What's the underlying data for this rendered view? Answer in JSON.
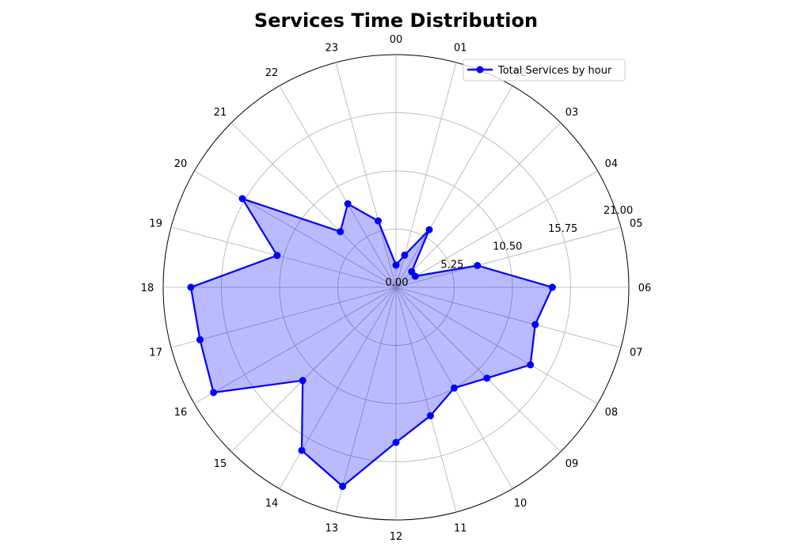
{
  "chart_data": {
    "type": "radar",
    "title": "Services Time Distribution",
    "categories": [
      "00",
      "01",
      "02",
      "03",
      "04",
      "05",
      "06",
      "07",
      "08",
      "09",
      "10",
      "11",
      "12",
      "13",
      "14",
      "15",
      "16",
      "17",
      "18",
      "19",
      "20",
      "21",
      "22",
      "23"
    ],
    "series": [
      {
        "name": "Total Services by hour",
        "values": [
          2.0,
          3.0,
          6.0,
          2.0,
          2.0,
          7.6,
          14.1,
          13.0,
          14.0,
          11.6,
          10.5,
          12.0,
          14.0,
          18.6,
          17.0,
          11.9,
          19.0,
          18.3,
          18.5,
          11.1,
          16.0,
          7.1,
          8.7,
          6.2
        ],
        "color": "#0000ff",
        "fill": "#0000ff",
        "fill_opacity": 0.27
      }
    ],
    "rlim": [
      0,
      21
    ],
    "rticks": [
      0,
      5.25,
      10.5,
      15.75,
      21.0
    ],
    "rtick_labels": [
      "0.00",
      "5.25",
      "10.50",
      "15.75",
      "21.00"
    ],
    "direction": "clockwise",
    "zero_location": "top",
    "grid": true,
    "legend_location": "top-right"
  }
}
